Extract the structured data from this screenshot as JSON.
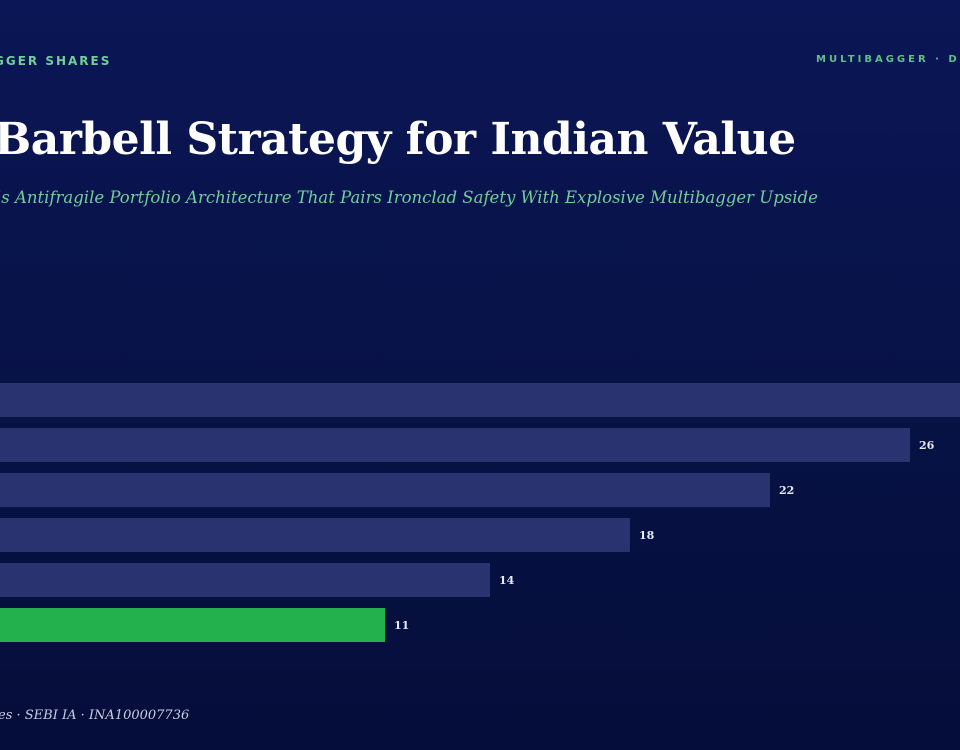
{
  "header": {
    "eyebrow_left": "GGER SHARES",
    "eyebrow_right": "MULTIBAGGER · D"
  },
  "title": "Barbell Strategy for Indian Value",
  "subtitle": "’s Antifragile Portfolio Architecture That Pairs Ironclad Safety With Explosive Multibagger Upside",
  "footer": "es · SEBI IA · INA100007736",
  "colors": {
    "bar": "#28336f",
    "highlight": "#22b14c",
    "accent_text": "#6fcf97"
  },
  "chart_data": {
    "type": "bar",
    "orientation": "horizontal",
    "title": "",
    "xlabel": "",
    "ylabel": "",
    "categories": [
      "",
      "",
      "",
      "",
      "",
      ""
    ],
    "values": [
      30,
      26,
      22,
      18,
      14,
      11
    ],
    "value_labels": [
      "",
      "26",
      "22",
      "18",
      "14",
      "11"
    ],
    "highlight_index": 5,
    "xlim": [
      0,
      30
    ],
    "grid": false,
    "legend": "none"
  }
}
